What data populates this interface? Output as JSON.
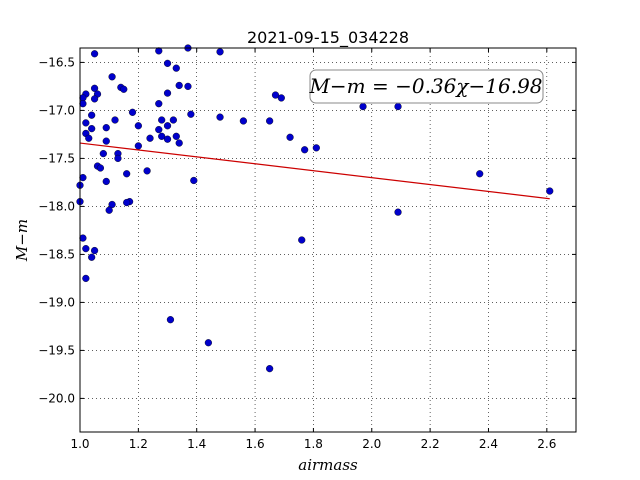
{
  "chart_data": {
    "type": "scatter",
    "title": "2021-09-15_034228",
    "xlabel": "airmass",
    "ylabel": "M−m",
    "xlim": [
      1.0,
      2.7
    ],
    "ylim": [
      -16.35,
      -20.35
    ],
    "y_inverted": true,
    "xticks": [
      "1.0",
      "1.2",
      "1.4",
      "1.6",
      "1.8",
      "2.0",
      "2.2",
      "2.4",
      "2.6"
    ],
    "yticks": [
      "−16.5",
      "−17.0",
      "−17.5",
      "−18.0",
      "−18.5",
      "−19.0",
      "−19.5",
      "−20.0"
    ],
    "grid": true,
    "annotation": "M−m = −0.36χ−16.98",
    "colors": {
      "points": "#0000cc",
      "fit": "#cc0000"
    },
    "fit_line": {
      "x": [
        1.0,
        2.61
      ],
      "y": [
        -17.34,
        -17.92
      ]
    },
    "points": [
      [
        1.05,
        -16.41
      ],
      [
        1.27,
        -16.38
      ],
      [
        1.37,
        -16.35
      ],
      [
        1.48,
        -16.39
      ],
      [
        1.3,
        -16.51
      ],
      [
        1.33,
        -16.56
      ],
      [
        1.11,
        -16.65
      ],
      [
        1.05,
        -16.77
      ],
      [
        1.06,
        -16.83
      ],
      [
        1.02,
        -16.83
      ],
      [
        1.01,
        -16.87
      ],
      [
        1.05,
        -16.88
      ],
      [
        1.01,
        -16.93
      ],
      [
        1.14,
        -16.76
      ],
      [
        1.15,
        -16.78
      ],
      [
        1.34,
        -16.74
      ],
      [
        1.37,
        -16.75
      ],
      [
        1.3,
        -16.82
      ],
      [
        1.27,
        -16.93
      ],
      [
        1.67,
        -16.84
      ],
      [
        1.69,
        -16.87
      ],
      [
        1.97,
        -16.96
      ],
      [
        2.09,
        -16.96
      ],
      [
        1.04,
        -17.05
      ],
      [
        1.12,
        -17.1
      ],
      [
        1.18,
        -17.02
      ],
      [
        1.28,
        -17.1
      ],
      [
        1.32,
        -17.1
      ],
      [
        1.38,
        -17.04
      ],
      [
        1.48,
        -17.07
      ],
      [
        1.56,
        -17.11
      ],
      [
        1.65,
        -17.11
      ],
      [
        1.02,
        -17.13
      ],
      [
        1.04,
        -17.19
      ],
      [
        1.09,
        -17.18
      ],
      [
        1.2,
        -17.16
      ],
      [
        1.3,
        -17.16
      ],
      [
        1.27,
        -17.2
      ],
      [
        1.02,
        -17.24
      ],
      [
        1.03,
        -17.29
      ],
      [
        1.09,
        -17.32
      ],
      [
        1.24,
        -17.29
      ],
      [
        1.28,
        -17.27
      ],
      [
        1.3,
        -17.3
      ],
      [
        1.33,
        -17.27
      ],
      [
        1.34,
        -17.34
      ],
      [
        1.72,
        -17.28
      ],
      [
        1.77,
        -17.41
      ],
      [
        1.81,
        -17.39
      ],
      [
        1.2,
        -17.37
      ],
      [
        1.08,
        -17.45
      ],
      [
        1.13,
        -17.45
      ],
      [
        1.13,
        -17.5
      ],
      [
        1.06,
        -17.58
      ],
      [
        1.07,
        -17.6
      ],
      [
        1.23,
        -17.63
      ],
      [
        1.16,
        -17.66
      ],
      [
        1.39,
        -17.73
      ],
      [
        1.09,
        -17.74
      ],
      [
        1.01,
        -17.7
      ],
      [
        1.0,
        -17.78
      ],
      [
        1.17,
        -17.95
      ],
      [
        1.16,
        -17.96
      ],
      [
        1.11,
        -17.98
      ],
      [
        1.1,
        -18.04
      ],
      [
        1.0,
        -17.95
      ],
      [
        2.37,
        -17.66
      ],
      [
        2.61,
        -17.84
      ],
      [
        2.09,
        -18.06
      ],
      [
        1.76,
        -18.35
      ],
      [
        1.01,
        -18.33
      ],
      [
        1.02,
        -18.44
      ],
      [
        1.05,
        -18.46
      ],
      [
        1.04,
        -18.53
      ],
      [
        1.02,
        -18.75
      ],
      [
        1.31,
        -19.18
      ],
      [
        1.44,
        -19.42
      ],
      [
        1.65,
        -19.69
      ]
    ]
  }
}
